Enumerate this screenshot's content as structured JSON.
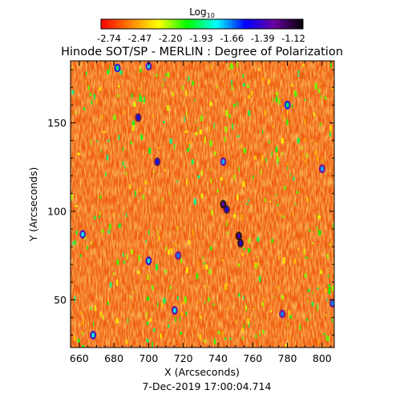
{
  "chart_data": {
    "type": "heatmap",
    "title": "Hinode SOT/SP - MERLIN : Degree of Polarization",
    "colorbar": {
      "label": "Log",
      "label_subscript": "10",
      "ticks": [
        "-2.74",
        "-2.47",
        "-2.20",
        "-1.93",
        "-1.66",
        "-1.39",
        "-1.12"
      ],
      "range": [
        -2.74,
        -1.12
      ],
      "colors": [
        "#ff0000",
        "#ff8000",
        "#ffff00",
        "#00ff00",
        "#00ffff",
        "#0000ff",
        "#6a00a0",
        "#000000"
      ]
    },
    "xlabel": "X (Arcseconds)",
    "ylabel": "Y (Arcseconds)",
    "xlim": [
      655,
      807
    ],
    "ylim": [
      23,
      185
    ],
    "xticks": [
      660,
      680,
      700,
      720,
      740,
      760,
      780,
      800
    ],
    "yticks": [
      50,
      100,
      150
    ],
    "background_level": -2.6,
    "features": [
      {
        "x": 682,
        "y": 181,
        "level": -1.95
      },
      {
        "x": 700,
        "y": 182,
        "level": -1.8
      },
      {
        "x": 694,
        "y": 153,
        "level": -1.6
      },
      {
        "x": 705,
        "y": 128,
        "level": -1.6
      },
      {
        "x": 743,
        "y": 128,
        "level": -1.75
      },
      {
        "x": 743,
        "y": 104,
        "level": -1.4
      },
      {
        "x": 745,
        "y": 101,
        "level": -1.55
      },
      {
        "x": 752,
        "y": 86,
        "level": -1.45
      },
      {
        "x": 753,
        "y": 82,
        "level": -1.5
      },
      {
        "x": 717,
        "y": 75,
        "level": -1.7
      },
      {
        "x": 700,
        "y": 72,
        "level": -1.85
      },
      {
        "x": 662,
        "y": 87,
        "level": -1.8
      },
      {
        "x": 715,
        "y": 44,
        "level": -1.8
      },
      {
        "x": 777,
        "y": 42,
        "level": -1.7
      },
      {
        "x": 800,
        "y": 124,
        "level": -1.75
      },
      {
        "x": 806,
        "y": 48,
        "level": -1.7
      },
      {
        "x": 668,
        "y": 30,
        "level": -1.85
      },
      {
        "x": 780,
        "y": 160,
        "level": -1.95
      }
    ]
  },
  "footer": {
    "date": "7-Dec-2019 17:00:04.714"
  }
}
